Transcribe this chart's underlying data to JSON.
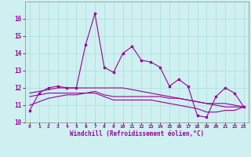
{
  "xlabel": "Windchill (Refroidissement éolien,°C)",
  "ylabel": "",
  "background_color": "#cff0f0",
  "grid_color": "#aadddd",
  "line_color": "#990099",
  "xlim": [
    -0.5,
    23.5
  ],
  "ylim": [
    10,
    17
  ],
  "yticks": [
    10,
    11,
    12,
    13,
    14,
    15,
    16
  ],
  "xticks": [
    0,
    1,
    2,
    3,
    4,
    5,
    6,
    7,
    8,
    9,
    10,
    11,
    12,
    13,
    14,
    15,
    16,
    17,
    18,
    19,
    20,
    21,
    22,
    23
  ],
  "line1": [
    10.7,
    11.7,
    12.0,
    12.1,
    12.0,
    12.0,
    14.5,
    16.3,
    13.2,
    12.9,
    14.0,
    14.4,
    13.6,
    13.5,
    13.2,
    12.1,
    12.5,
    12.1,
    10.4,
    10.3,
    11.5,
    12.0,
    11.7,
    10.9
  ],
  "line2": [
    11.7,
    11.8,
    11.9,
    12.0,
    12.0,
    12.0,
    12.0,
    12.0,
    12.0,
    12.0,
    12.0,
    11.9,
    11.8,
    11.7,
    11.6,
    11.5,
    11.4,
    11.3,
    11.2,
    11.1,
    11.0,
    10.9,
    10.9,
    10.9
  ],
  "line3": [
    11.5,
    11.6,
    11.7,
    11.7,
    11.7,
    11.7,
    11.7,
    11.8,
    11.6,
    11.5,
    11.5,
    11.5,
    11.5,
    11.5,
    11.5,
    11.4,
    11.4,
    11.3,
    11.2,
    11.1,
    11.1,
    11.1,
    11.0,
    10.9
  ],
  "line4": [
    11.0,
    11.2,
    11.4,
    11.5,
    11.6,
    11.6,
    11.7,
    11.7,
    11.5,
    11.3,
    11.3,
    11.3,
    11.3,
    11.3,
    11.2,
    11.1,
    11.0,
    10.9,
    10.8,
    10.6,
    10.6,
    10.7,
    10.7,
    10.9
  ]
}
